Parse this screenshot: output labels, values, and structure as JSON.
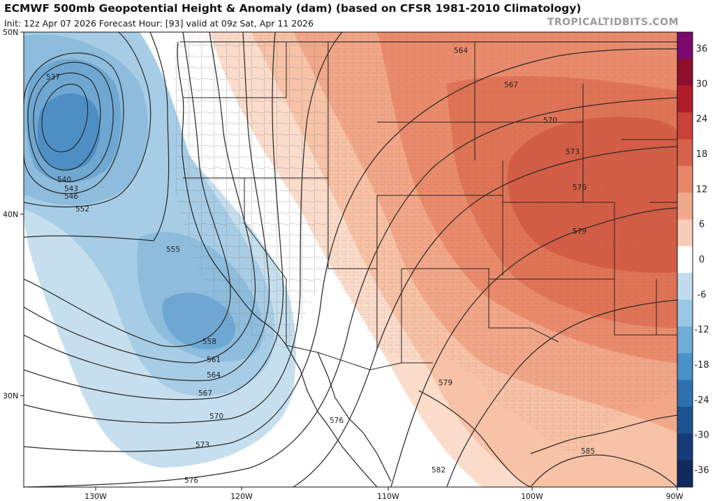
{
  "header": {
    "title": "ECMWF 500mb Geopotential Height & Anomaly (dam) (based on CFSR 1981-2010 Climatology)",
    "subtitle": "Init: 12z Apr 07 2026   Forecast Hour: [93]   valid at 09z Sat, Apr 11 2026",
    "brand": "TROPICALTIDBITS.COM"
  },
  "axes": {
    "lat_labels": [
      "50N",
      "40N",
      "30N"
    ],
    "lon_labels": [
      "130W",
      "120W",
      "110W",
      "100W",
      "90W"
    ]
  },
  "contour_labels": [
    "537",
    "540",
    "543",
    "546",
    "552",
    "555",
    "558",
    "561",
    "564",
    "567",
    "570",
    "573",
    "576",
    "564",
    "567",
    "570",
    "573",
    "576",
    "579",
    "579",
    "576",
    "582",
    "585"
  ],
  "colorbar": {
    "labels": [
      "36",
      "30",
      "24",
      "18",
      "12",
      "6",
      "0",
      "-6",
      "-12",
      "-18",
      "-24",
      "-30",
      "-36"
    ],
    "colors": [
      "#7a0a6e",
      "#8e0f2b",
      "#b01e2c",
      "#c8403a",
      "#d8614b",
      "#e6876a",
      "#f0a98c",
      "#f8cdb8",
      "#ffffff",
      "#c0dcee",
      "#9ac8e4",
      "#6fadd6",
      "#4a91c6",
      "#2e70ae",
      "#1d5291",
      "#173b78",
      "#102a5e"
    ]
  },
  "map_colors": {
    "state_border": "#222222",
    "county_border": "#777777",
    "contour": "#222222"
  }
}
